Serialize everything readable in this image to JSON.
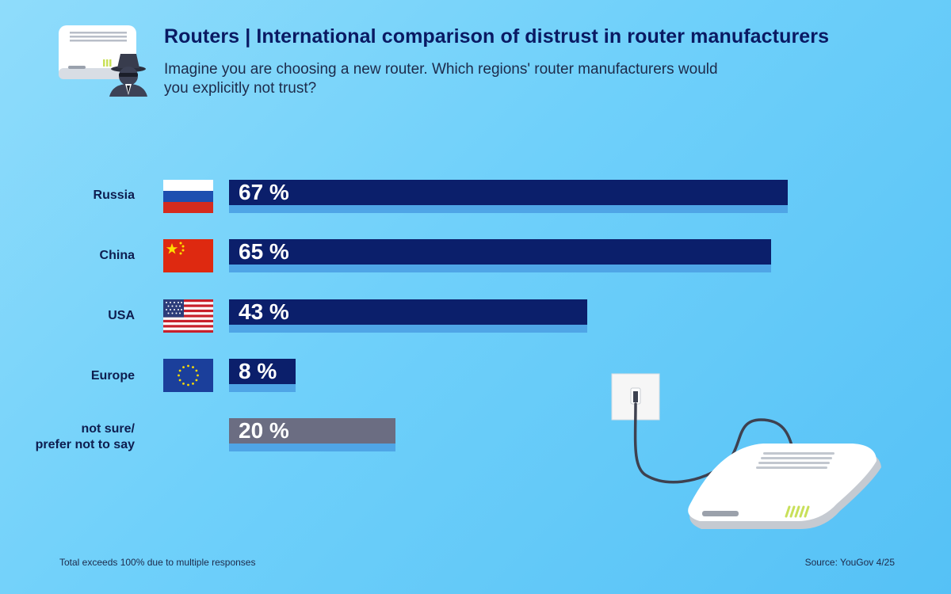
{
  "header": {
    "title": "Routers | International comparison of distrust in router manufacturers",
    "subtitle": "Imagine you are choosing a new router. Which regions' router manufacturers would you explicitly not trust?"
  },
  "chart_data": {
    "type": "bar",
    "orientation": "horizontal",
    "title": "Routers | International comparison of distrust in router manufacturers",
    "subtitle": "Imagine you are choosing a new router. Which regions' router manufacturers would you explicitly not trust?",
    "categories": [
      "Russia",
      "China",
      "USA",
      "Europe",
      "not sure/ prefer not to say"
    ],
    "category_lines": [
      [
        "Russia"
      ],
      [
        "China"
      ],
      [
        "USA"
      ],
      [
        "Europe"
      ],
      [
        "not sure/",
        "prefer not to say"
      ]
    ],
    "values": [
      67,
      65,
      43,
      8,
      20
    ],
    "value_labels": [
      "67 %",
      "65 %",
      "43 %",
      "8 %",
      "20 %"
    ],
    "unit": "%",
    "flags": [
      "russia-flag-icon",
      "china-flag-icon",
      "usa-flag-icon",
      "eu-flag-icon",
      null
    ],
    "colors": {
      "bar": "#0b1f6b",
      "bar_other": "#6b6d82",
      "bar_shadow": "#4fa5e6",
      "title": "#0a1a63"
    },
    "xlim": [
      0,
      67
    ],
    "grid": false,
    "legend": "none"
  },
  "footer": {
    "note": "Total exceeds 100% due to multiple responses",
    "source": "Source: YouGov 4/25"
  },
  "icons": {
    "top_left": "router-with-spy-icon",
    "bottom_right": "router-with-power-cable-icon"
  }
}
